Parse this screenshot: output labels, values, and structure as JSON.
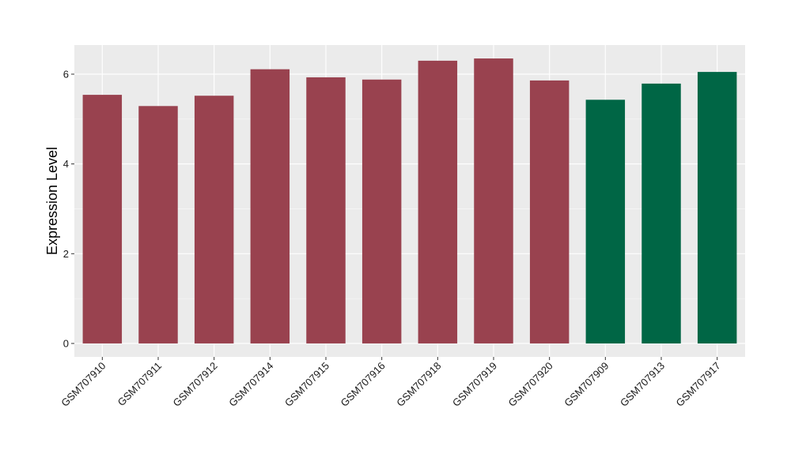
{
  "chart_data": {
    "type": "bar",
    "title": "",
    "xlabel": "",
    "ylabel": "Expression Level",
    "ylim": [
      -0.3,
      6.65
    ],
    "yticks": [
      0,
      2,
      4,
      6
    ],
    "grid": true,
    "legend": "none",
    "colors": {
      "panel_bg": "#ebebeb",
      "grid_major": "#ffffff",
      "group_a": "#99424f",
      "group_b": "#006645"
    },
    "categories": [
      "GSM707910",
      "GSM707911",
      "GSM707912",
      "GSM707914",
      "GSM707915",
      "GSM707916",
      "GSM707918",
      "GSM707919",
      "GSM707920",
      "GSM707909",
      "GSM707913",
      "GSM707917"
    ],
    "values": [
      5.54,
      5.29,
      5.52,
      6.11,
      5.93,
      5.88,
      6.3,
      6.35,
      5.86,
      5.43,
      5.79,
      6.05
    ],
    "bar_colors": [
      "#99424f",
      "#99424f",
      "#99424f",
      "#99424f",
      "#99424f",
      "#99424f",
      "#99424f",
      "#99424f",
      "#99424f",
      "#006645",
      "#006645",
      "#006645"
    ]
  }
}
